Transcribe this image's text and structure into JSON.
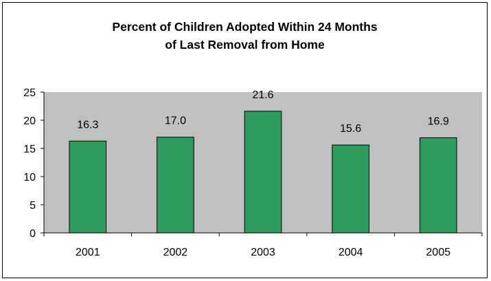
{
  "chart_data": {
    "type": "bar",
    "title_lines": [
      "Percent of Children Adopted Within 24 Months",
      "of Last Removal from Home"
    ],
    "categories": [
      "2001",
      "2002",
      "2003",
      "2004",
      "2005"
    ],
    "values": [
      16.3,
      17.0,
      21.6,
      15.6,
      16.9
    ],
    "value_labels": [
      "16.3",
      "17.0",
      "21.6",
      "15.6",
      "16.9"
    ],
    "y_ticks": [
      "0",
      "5",
      "10",
      "15",
      "20",
      "25"
    ],
    "ylim": [
      0,
      25
    ],
    "grid": false,
    "legend": "none",
    "colors": {
      "bar": "#2e9b5f",
      "plot_bg": "#c0c0c0",
      "bar_border": "#000000"
    }
  }
}
